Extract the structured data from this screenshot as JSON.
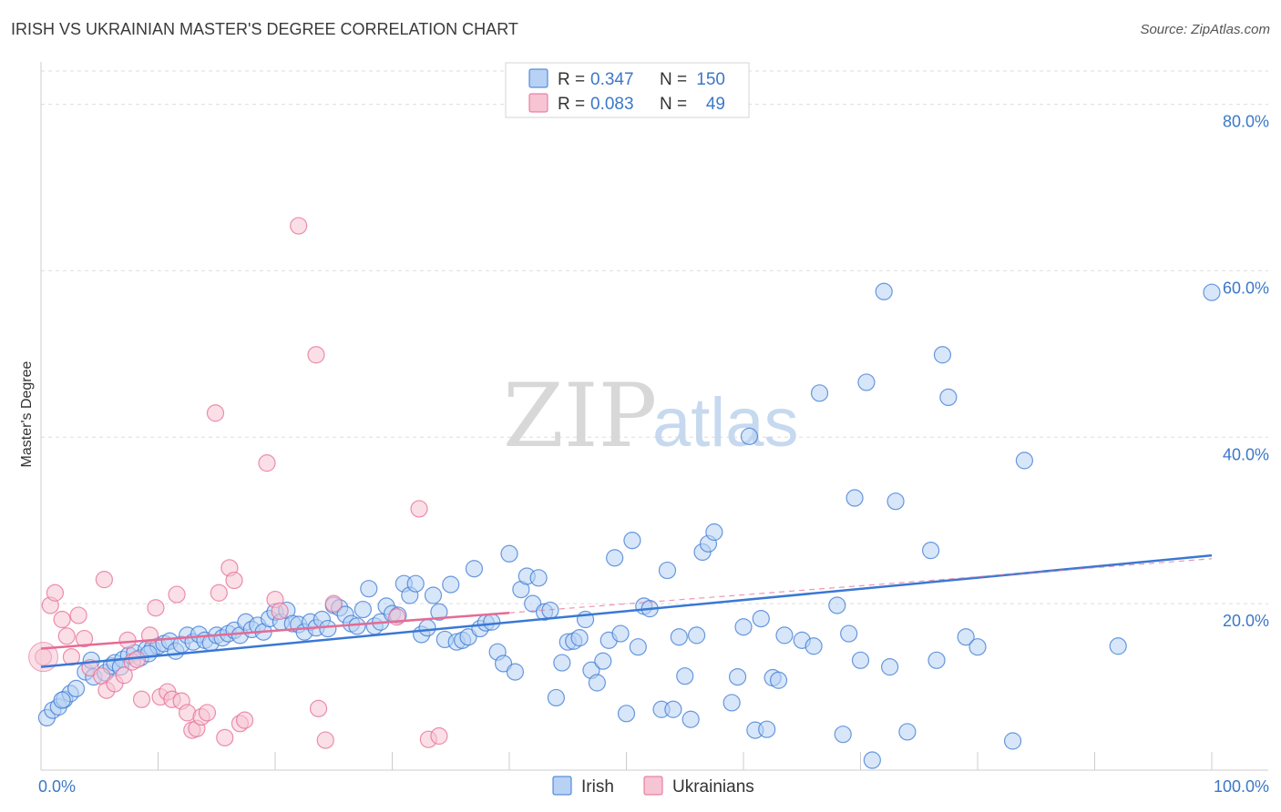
{
  "title": "IRISH VS UKRAINIAN MASTER'S DEGREE CORRELATION CHART",
  "source": "Source: ZipAtlas.com",
  "watermark": {
    "zip": "ZIP",
    "atlas": "atlas"
  },
  "colors": {
    "irish": "#3a78d4",
    "irish_fill": "#b7d2f4",
    "ukrainians": "#e56b94",
    "ukrainians_fill": "#f6c4d3",
    "axis_text": "#3b78c8",
    "grid": "#dddddd"
  },
  "legend": {
    "rows": [
      {
        "series": "irish",
        "r_label": "R =",
        "r_value": "0.347",
        "n_label": "N =",
        "n_value": "150"
      },
      {
        "series": "ukrainians",
        "r_label": "R =",
        "r_value": "0.083",
        "n_label": "N =",
        "n_value": "49"
      }
    ]
  },
  "chart_data": {
    "type": "scatter",
    "xlabel": "",
    "ylabel": "Master's Degree",
    "xlim": [
      0,
      100
    ],
    "ylim": [
      0,
      84
    ],
    "x_tick_labels": [
      {
        "value": 0,
        "label": "0.0%"
      },
      {
        "value": 100,
        "label": "100.0%"
      }
    ],
    "y_tick_labels": [
      {
        "value": 20,
        "label": "20.0%"
      },
      {
        "value": 40,
        "label": "40.0%"
      },
      {
        "value": 60,
        "label": "60.0%"
      },
      {
        "value": 80,
        "label": "80.0%"
      }
    ],
    "grid": true,
    "legend_position": "top-center",
    "series": [
      {
        "name": "Irish",
        "key": "irish",
        "trend": {
          "x": [
            0,
            100
          ],
          "y": [
            12.4,
            25.8
          ],
          "dashed_extension": false
        },
        "points": [
          [
            0.5,
            6.3
          ],
          [
            1,
            7.2
          ],
          [
            1.5,
            7.6
          ],
          [
            2,
            8.5
          ],
          [
            2.5,
            9.2
          ],
          [
            3,
            9.8
          ],
          [
            3.8,
            11.8
          ],
          [
            4.3,
            13.2
          ],
          [
            4.5,
            11.2
          ],
          [
            5.5,
            11.7
          ],
          [
            6,
            12.5
          ],
          [
            6.3,
            12.9
          ],
          [
            7,
            13.3
          ],
          [
            7.5,
            13.8
          ],
          [
            8,
            14.1
          ],
          [
            8.5,
            13.5
          ],
          [
            9,
            14.5
          ],
          [
            9.5,
            14.6
          ],
          [
            10,
            14.9
          ],
          [
            10.5,
            15.2
          ],
          [
            11,
            15.5
          ],
          [
            11.5,
            14.3
          ],
          [
            12,
            15.1
          ],
          [
            12.5,
            16.2
          ],
          [
            13,
            15.4
          ],
          [
            13.5,
            16.3
          ],
          [
            14,
            15.6
          ],
          [
            14.5,
            15.3
          ],
          [
            15,
            16.2
          ],
          [
            15.5,
            15.9
          ],
          [
            16,
            16.4
          ],
          [
            16.5,
            16.8
          ],
          [
            17,
            16.2
          ],
          [
            17.5,
            17.8
          ],
          [
            18,
            16.9
          ],
          [
            18.5,
            17.4
          ],
          [
            19,
            16.6
          ],
          [
            19.5,
            18.2
          ],
          [
            20,
            19.0
          ],
          [
            20.5,
            17.8
          ],
          [
            21,
            19.2
          ],
          [
            21.5,
            17.6
          ],
          [
            22,
            17.5
          ],
          [
            22.5,
            16.6
          ],
          [
            23,
            17.8
          ],
          [
            23.5,
            17.1
          ],
          [
            24,
            18.1
          ],
          [
            24.5,
            17.0
          ],
          [
            25,
            19.8
          ],
          [
            25.5,
            19.5
          ],
          [
            26,
            18.7
          ],
          [
            26.5,
            17.6
          ],
          [
            27,
            17.3
          ],
          [
            27.5,
            19.3
          ],
          [
            28,
            21.8
          ],
          [
            28.5,
            17.3
          ],
          [
            29,
            17.8
          ],
          [
            29.5,
            19.7
          ],
          [
            30,
            18.8
          ],
          [
            30.5,
            18.6
          ],
          [
            31,
            22.4
          ],
          [
            31.5,
            21.0
          ],
          [
            32,
            22.4
          ],
          [
            32.5,
            16.3
          ],
          [
            33,
            17.1
          ],
          [
            33.5,
            21.0
          ],
          [
            34,
            19.0
          ],
          [
            34.5,
            15.7
          ],
          [
            35,
            22.3
          ],
          [
            35.5,
            15.4
          ],
          [
            36,
            15.6
          ],
          [
            36.5,
            16.0
          ],
          [
            37,
            24.2
          ],
          [
            37.5,
            17.0
          ],
          [
            38,
            17.7
          ],
          [
            38.5,
            17.8
          ],
          [
            39,
            14.2
          ],
          [
            39.5,
            12.8
          ],
          [
            40,
            26.0
          ],
          [
            40.5,
            11.8
          ],
          [
            41,
            21.7
          ],
          [
            41.5,
            23.3
          ],
          [
            42,
            20.0
          ],
          [
            42.5,
            23.1
          ],
          [
            43,
            19.0
          ],
          [
            43.5,
            19.2
          ],
          [
            44,
            8.7
          ],
          [
            44.5,
            12.9
          ],
          [
            45,
            15.4
          ],
          [
            45.5,
            15.5
          ],
          [
            46,
            15.9
          ],
          [
            46.5,
            18.1
          ],
          [
            47,
            12.0
          ],
          [
            47.5,
            10.5
          ],
          [
            48,
            13.1
          ],
          [
            48.5,
            15.6
          ],
          [
            49,
            25.5
          ],
          [
            49.5,
            16.4
          ],
          [
            50,
            6.8
          ],
          [
            50.5,
            27.6
          ],
          [
            51,
            14.8
          ],
          [
            51.5,
            19.7
          ],
          [
            52,
            19.4
          ],
          [
            53,
            7.3
          ],
          [
            53.5,
            24.0
          ],
          [
            54,
            7.3
          ],
          [
            54.5,
            16.0
          ],
          [
            55,
            11.3
          ],
          [
            55.5,
            6.1
          ],
          [
            56,
            16.2
          ],
          [
            56.5,
            26.2
          ],
          [
            57,
            27.2
          ],
          [
            57.5,
            28.6
          ],
          [
            59,
            8.1
          ],
          [
            59.5,
            11.2
          ],
          [
            60,
            17.2
          ],
          [
            60.5,
            40.1
          ],
          [
            61,
            4.8
          ],
          [
            61.5,
            18.2
          ],
          [
            62,
            4.9
          ],
          [
            62.5,
            11.1
          ],
          [
            63,
            10.8
          ],
          [
            63.5,
            16.2
          ],
          [
            65,
            15.6
          ],
          [
            66,
            14.9
          ],
          [
            66.5,
            45.3
          ],
          [
            68,
            19.8
          ],
          [
            68.5,
            4.3
          ],
          [
            69,
            16.4
          ],
          [
            69.5,
            32.7
          ],
          [
            70,
            13.2
          ],
          [
            70.5,
            46.6
          ],
          [
            71,
            1.2
          ],
          [
            72,
            57.5
          ],
          [
            72.5,
            12.4
          ],
          [
            73,
            32.3
          ],
          [
            74,
            4.6
          ],
          [
            76,
            26.4
          ],
          [
            76.5,
            13.2
          ],
          [
            77,
            49.9
          ],
          [
            77.5,
            44.8
          ],
          [
            79,
            16.0
          ],
          [
            80,
            14.8
          ],
          [
            83,
            3.5
          ],
          [
            84,
            37.2
          ],
          [
            92,
            14.9
          ],
          [
            100,
            57.4
          ],
          [
            1.8,
            8.4
          ],
          [
            6.8,
            12.4
          ],
          [
            9.2,
            14.0
          ]
        ]
      },
      {
        "name": "Ukrainians",
        "key": "ukrainians",
        "trend": {
          "x": [
            0,
            40
          ],
          "y": [
            14.6,
            18.9
          ],
          "dashed_extension": true,
          "dashed_to": [
            100,
            25.4
          ]
        },
        "points": [
          [
            0.2,
            13.6
          ],
          [
            0.8,
            19.8
          ],
          [
            1.2,
            21.3
          ],
          [
            1.8,
            18.1
          ],
          [
            2.2,
            16.1
          ],
          [
            2.6,
            13.6
          ],
          [
            3.2,
            18.6
          ],
          [
            3.7,
            15.8
          ],
          [
            4.2,
            12.3
          ],
          [
            5.2,
            11.3
          ],
          [
            5.6,
            9.6
          ],
          [
            5.4,
            22.9
          ],
          [
            6.3,
            10.4
          ],
          [
            7.1,
            11.4
          ],
          [
            7.4,
            15.6
          ],
          [
            7.8,
            13.0
          ],
          [
            8.2,
            13.3
          ],
          [
            8.6,
            8.5
          ],
          [
            9.3,
            16.2
          ],
          [
            9.8,
            19.5
          ],
          [
            10.2,
            8.8
          ],
          [
            10.8,
            9.4
          ],
          [
            11.2,
            8.5
          ],
          [
            11.6,
            21.1
          ],
          [
            12.0,
            8.3
          ],
          [
            12.5,
            6.9
          ],
          [
            12.9,
            4.8
          ],
          [
            13.3,
            5.0
          ],
          [
            13.7,
            6.4
          ],
          [
            14.2,
            6.9
          ],
          [
            14.9,
            42.9
          ],
          [
            15.2,
            21.3
          ],
          [
            15.7,
            3.9
          ],
          [
            16.1,
            24.3
          ],
          [
            16.5,
            22.8
          ],
          [
            17.0,
            5.6
          ],
          [
            17.4,
            6.0
          ],
          [
            19.3,
            36.9
          ],
          [
            20.0,
            20.5
          ],
          [
            20.4,
            19.1
          ],
          [
            22.0,
            65.4
          ],
          [
            23.5,
            49.9
          ],
          [
            23.7,
            7.4
          ],
          [
            24.3,
            3.6
          ],
          [
            25.0,
            20.0
          ],
          [
            30.4,
            18.4
          ],
          [
            32.3,
            31.4
          ],
          [
            33.1,
            3.7
          ],
          [
            34.0,
            4.1
          ]
        ]
      }
    ]
  },
  "bottom_legend": [
    {
      "series": "irish",
      "label": "Irish"
    },
    {
      "series": "ukrainians",
      "label": "Ukrainians"
    }
  ]
}
